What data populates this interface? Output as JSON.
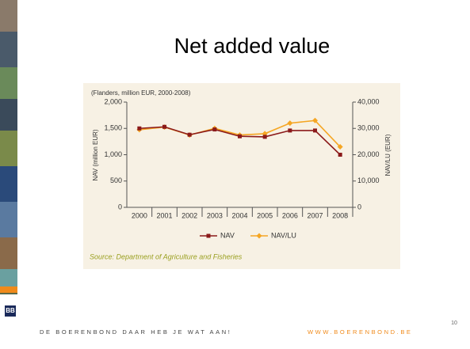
{
  "slide": {
    "title": "Net added value",
    "footer_slogan": "DE BOERENBOND DAAR HEB JE WAT AAN!",
    "footer_url": "WWW.BOERENBOND.BE",
    "page_number": "10"
  },
  "chart_data": {
    "type": "line",
    "subtitle": "(Flanders, million EUR, 2000-2008)",
    "y_label": "NAV (million EUR)",
    "y2_label": "NAV/LU (EUR)",
    "categories": [
      "2000",
      "2001",
      "2002",
      "2003",
      "2004",
      "2005",
      "2006",
      "2007",
      "2008"
    ],
    "series": [
      {
        "name": "NAV",
        "color": "#8b1a1a",
        "marker": "square",
        "values": [
          1500,
          1530,
          1380,
          1480,
          1350,
          1340,
          1460,
          1460,
          1000
        ]
      },
      {
        "name": "NAV/LU",
        "color": "#f5a623",
        "marker": "diamond",
        "axis": "y2",
        "values": [
          29500,
          30500,
          27500,
          30000,
          27500,
          28000,
          32000,
          33000,
          23000
        ]
      }
    ],
    "ylim": [
      0,
      2000
    ],
    "yticks": [
      0,
      500,
      {
        "value": 1000,
        "label": "1,000"
      },
      {
        "value": 1500,
        "label": "1,500"
      },
      {
        "value": 2000,
        "label": "2,000"
      }
    ],
    "y2lim": [
      0,
      40000
    ],
    "y2ticks": [
      0,
      {
        "value": 10000,
        "label": "10,000"
      },
      {
        "value": 20000,
        "label": "20,000"
      },
      {
        "value": 30000,
        "label": "30,000"
      },
      {
        "value": 40000,
        "label": "40,000"
      }
    ],
    "legend": "bottom",
    "source": "Source: Department of Agriculture and Fisheries"
  }
}
